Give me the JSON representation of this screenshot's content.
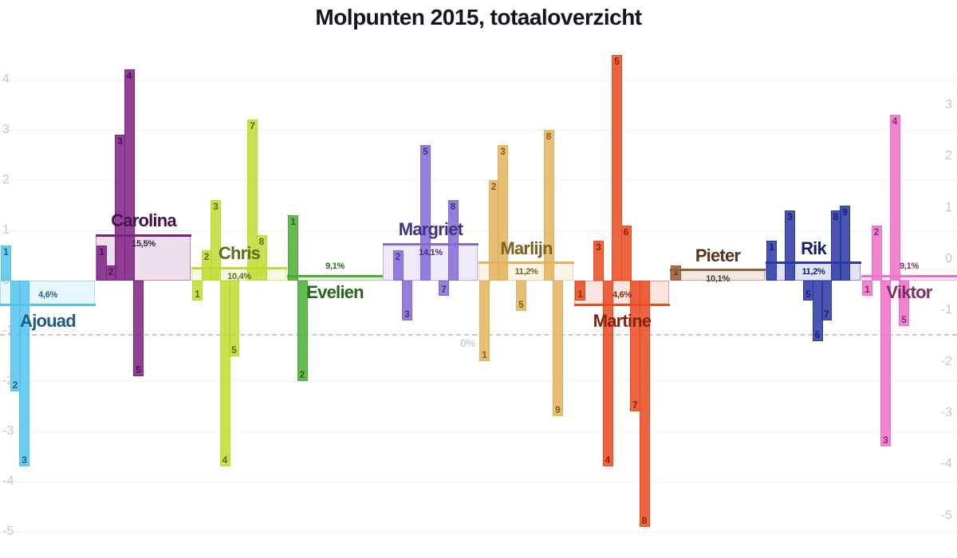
{
  "page": {
    "title": "Molpunten 2015, totaaloverzicht"
  },
  "chart_data": {
    "type": "bar",
    "title": "Molpunten 2015, totaaloverzicht",
    "grid": true,
    "legend": "none",
    "ylim_points": [
      -5,
      4.6
    ],
    "y_axis_left_ticks": [
      4,
      3,
      2,
      1,
      0,
      -1,
      -2,
      -3,
      -4,
      -5
    ],
    "y_axis_right_ticks": [
      3,
      2,
      1,
      0,
      -1,
      -2,
      -3,
      -4,
      -5
    ],
    "pct_zero_label": "0%",
    "bar_labels_are": "episode numbers",
    "people": [
      {
        "name": "Ajouad",
        "pct": 4.6,
        "pct_label": "4,6%",
        "color": "#53C3EC",
        "dark": "#1C5C8C",
        "name_side": "below",
        "bars": [
          {
            "episode": 1,
            "value": 0.7
          },
          {
            "episode": 2,
            "value": -2.2
          },
          {
            "episode": 3,
            "value": -3.7
          }
        ]
      },
      {
        "name": "Carolina",
        "pct": 15.5,
        "pct_label": "15,5%",
        "color": "#7E2183",
        "dark": "#471049",
        "name_side": "above",
        "bars": [
          {
            "episode": 1,
            "value": 0.7
          },
          {
            "episode": 2,
            "value": 0.3
          },
          {
            "episode": 3,
            "value": 2.9
          },
          {
            "episode": 4,
            "value": 4.2
          },
          {
            "episode": 5,
            "value": -1.9
          }
        ]
      },
      {
        "name": "Chris",
        "pct": 10.4,
        "pct_label": "10,4%",
        "color": "#BFDB30",
        "dark": "#5F6B12",
        "name_side": "above",
        "bars": [
          {
            "episode": 1,
            "value": -0.4
          },
          {
            "episode": 2,
            "value": 0.6
          },
          {
            "episode": 3,
            "value": 1.6
          },
          {
            "episode": 4,
            "value": -3.7
          },
          {
            "episode": 5,
            "value": -1.5
          },
          {
            "episode": 7,
            "value": 3.2
          },
          {
            "episode": 8,
            "value": 0.9
          }
        ]
      },
      {
        "name": "Evelien",
        "pct": 9.1,
        "pct_label": "9,1%",
        "color": "#4BAE33",
        "dark": "#27661A",
        "name_side": "below",
        "bars": [
          {
            "episode": 1,
            "value": 1.3
          },
          {
            "episode": 2,
            "value": -2.0
          }
        ]
      },
      {
        "name": "Margriet",
        "pct": 14.1,
        "pct_label": "14,1%",
        "color": "#8468D6",
        "dark": "#3D3380",
        "name_side": "above",
        "bars": [
          {
            "episode": 2,
            "value": 0.6
          },
          {
            "episode": 3,
            "value": -0.8
          },
          {
            "episode": 5,
            "value": 2.7
          },
          {
            "episode": 7,
            "value": -0.3
          },
          {
            "episode": 8,
            "value": 1.6
          }
        ]
      },
      {
        "name": "Marlijn",
        "pct": 11.2,
        "pct_label": "11,2%",
        "color": "#E2B35C",
        "dark": "#7D6020",
        "name_side": "above",
        "bars": [
          {
            "episode": 1,
            "value": -1.6
          },
          {
            "episode": 2,
            "value": 2.0
          },
          {
            "episode": 3,
            "value": 2.7
          },
          {
            "episode": 5,
            "value": -0.6
          },
          {
            "episode": 8,
            "value": 3.0
          },
          {
            "episode": 9,
            "value": -2.7
          }
        ]
      },
      {
        "name": "Martine",
        "pct": 4.6,
        "pct_label": "4,6%",
        "color": "#E94A1E",
        "dark": "#8A220A",
        "name_side": "below",
        "bars": [
          {
            "episode": 1,
            "value": -0.4
          },
          {
            "episode": 3,
            "value": 0.8
          },
          {
            "episode": 4,
            "value": -3.7
          },
          {
            "episode": 5,
            "value": 4.5
          },
          {
            "episode": 6,
            "value": 1.1
          },
          {
            "episode": 7,
            "value": -2.6
          },
          {
            "episode": 8,
            "value": -4.9
          }
        ]
      },
      {
        "name": "Pieter",
        "pct": 10.1,
        "pct_label": "10,1%",
        "color": "#9A5B36",
        "dark": "#56331A",
        "name_side": "above",
        "bars": [
          {
            "episode": 1,
            "value": 0.3
          }
        ]
      },
      {
        "name": "Rik",
        "pct": 11.2,
        "pct_label": "11,2%",
        "color": "#2B37A3",
        "dark": "#161F6E",
        "name_side": "above",
        "bars": [
          {
            "episode": 1,
            "value": 0.8
          },
          {
            "episode": 3,
            "value": 1.4
          },
          {
            "episode": 5,
            "value": -0.4
          },
          {
            "episode": 6,
            "value": -1.2
          },
          {
            "episode": 7,
            "value": -0.8
          },
          {
            "episode": 8,
            "value": 1.4
          },
          {
            "episode": 9,
            "value": 1.5
          }
        ]
      },
      {
        "name": "Viktor",
        "pct": 9.1,
        "pct_label": "9,1%",
        "color": "#EE6EC9",
        "dark": "#832C6B",
        "name_side": "below",
        "bars": [
          {
            "episode": 1,
            "value": -0.3
          },
          {
            "episode": 2,
            "value": 1.1
          },
          {
            "episode": 3,
            "value": -3.3
          },
          {
            "episode": 4,
            "value": 3.3
          },
          {
            "episode": 5,
            "value": -0.9
          }
        ]
      }
    ]
  }
}
